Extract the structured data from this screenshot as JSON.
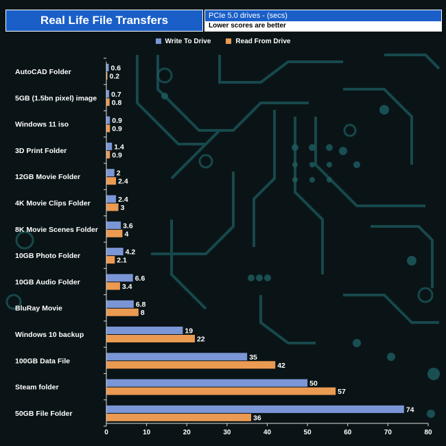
{
  "header": {
    "title": "Real Life File Transfers",
    "subtitle": "PCIe 5.0 drives - (secs)",
    "note": "Lower scores are better"
  },
  "colors": {
    "write": "#7b96d6",
    "read": "#eb9a52",
    "header_blue": "#1a5fc8",
    "background": "#0a1416",
    "circuit": "#1c5a5e"
  },
  "chart_data": {
    "type": "bar",
    "orientation": "horizontal",
    "categories": [
      "AutoCAD Folder",
      "5GB (1.5bn pixel) image",
      "Windows 11 iso",
      "3D Print Folder",
      "12GB Movie Folder",
      "4K Movie Clips Folder",
      "8K Movie Scenes Folder",
      "10GB Photo Folder",
      "10GB Audio Folder",
      "BluRay Movie",
      "Windows 10 backup",
      "100GB Data File",
      "Steam folder",
      "50GB File Folder"
    ],
    "series": [
      {
        "name": "Write To  Drive",
        "values": [
          0.6,
          0.7,
          0.9,
          1.4,
          2,
          2.4,
          3.6,
          4.2,
          6.6,
          6.8,
          19,
          35,
          50,
          74
        ],
        "labels": [
          "0.6",
          "0.7",
          "0.9",
          "1.4",
          "2",
          "2.4",
          "3.6",
          "4.2",
          "6.6",
          "6.8",
          "19",
          "35",
          "50",
          "74"
        ]
      },
      {
        "name": "Read From  Drive",
        "values": [
          0.2,
          0.8,
          0.9,
          0.9,
          2.4,
          3,
          4,
          2.1,
          3.4,
          8,
          22,
          42,
          57,
          36
        ],
        "labels": [
          "0.2",
          "0.8",
          "0.9",
          "0.9",
          "2.4",
          "3",
          "4",
          "2.1",
          "3.4",
          "8",
          "22",
          "42",
          "57",
          "36"
        ]
      }
    ],
    "x_ticks": [
      "0",
      "10",
      "20",
      "30",
      "40",
      "50",
      "60",
      "70",
      "80"
    ],
    "xlim": [
      0,
      80
    ],
    "grid": false,
    "legend": "top-center"
  }
}
